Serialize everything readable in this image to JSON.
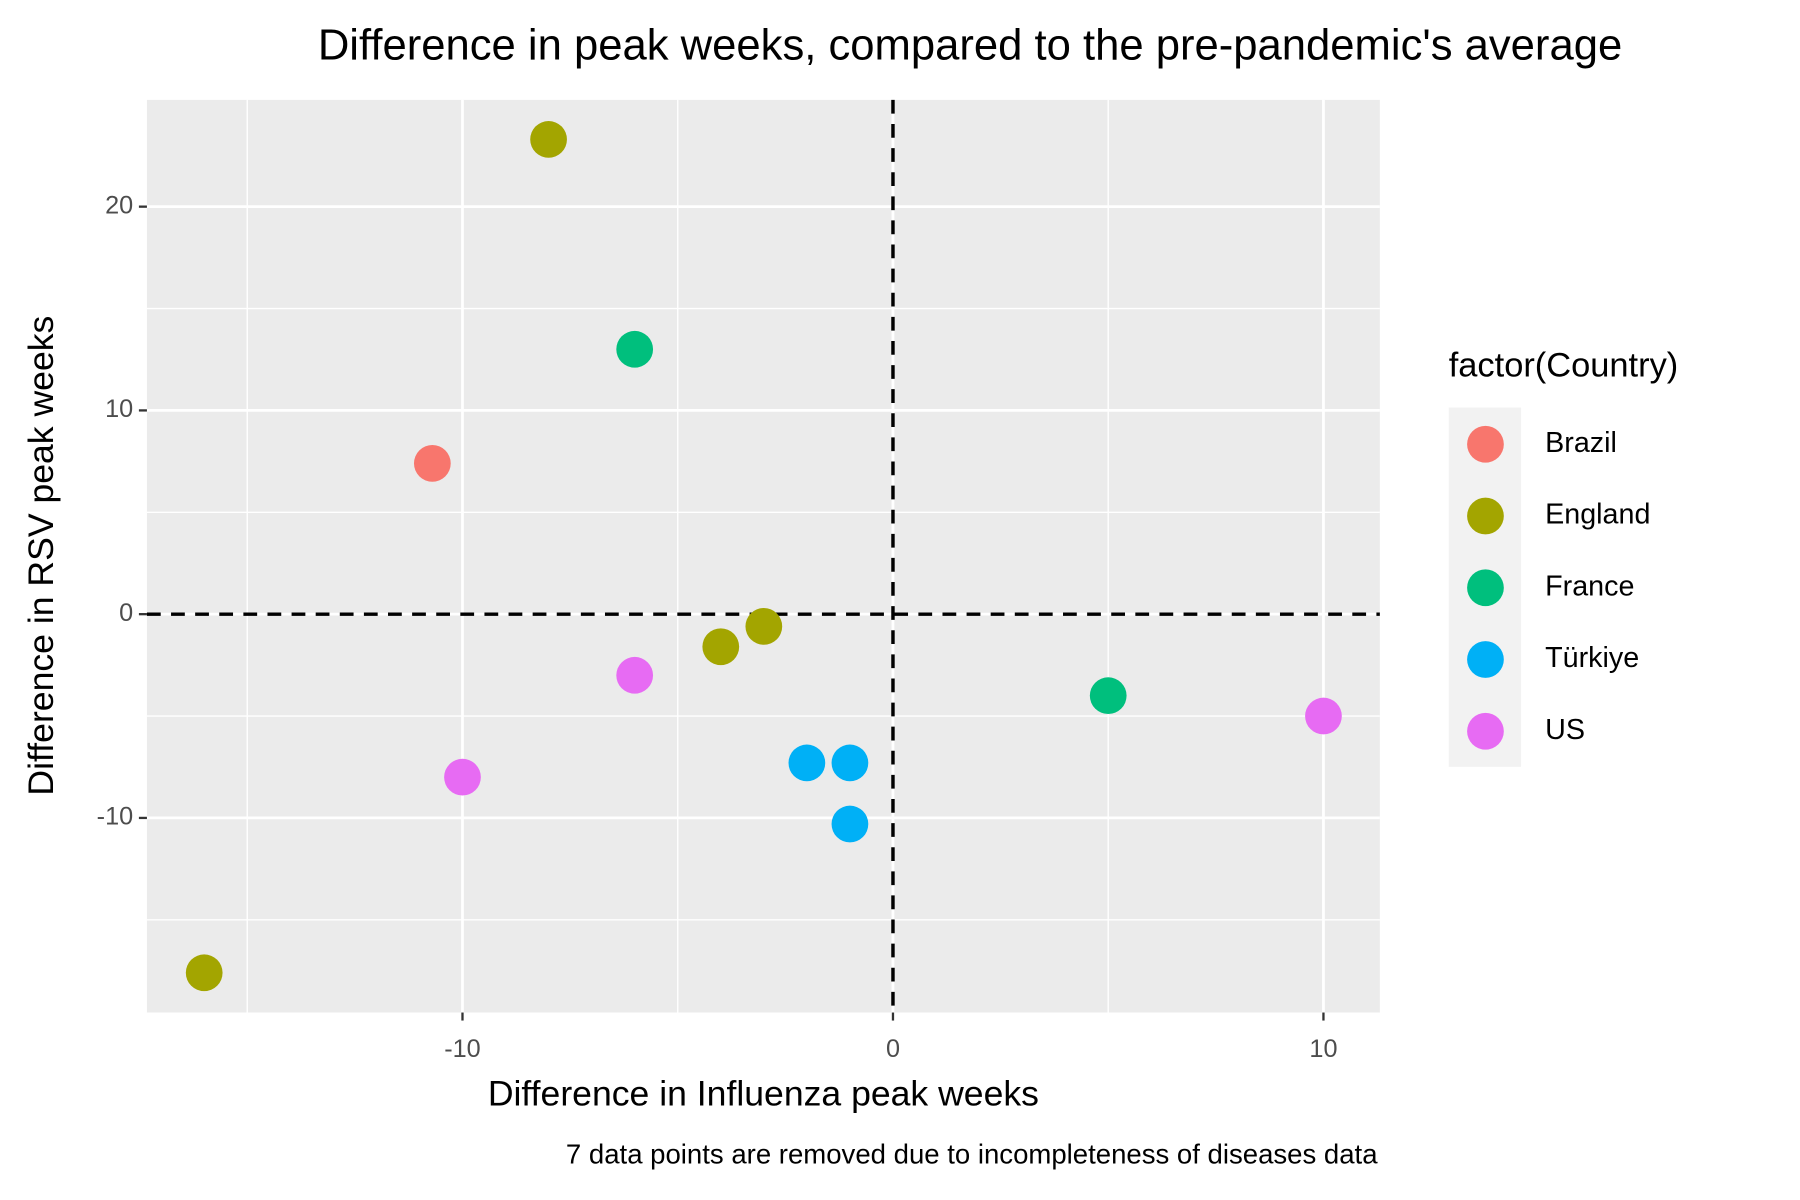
{
  "chart_data": {
    "type": "scatter",
    "title": "Difference in peak weeks, compared to the pre-pandemic's average",
    "x_label": "Difference in Influenza peak weeks",
    "y_label": "Difference in RSV peak weeks",
    "caption": "7 data points are removed due to incompleteness of diseases data",
    "legend_title": "factor(Country)",
    "legend_position": "right",
    "xlim": [
      -17.33,
      11.31
    ],
    "ylim": [
      -19.55,
      25.24
    ],
    "xticks": [
      -10,
      0,
      10
    ],
    "yticks": [
      -10,
      0,
      10,
      20
    ],
    "x_minor_ticks": [
      -15,
      -5,
      5
    ],
    "y_minor_ticks": [
      -15,
      -5,
      5,
      15
    ],
    "grid": true,
    "hlines": [
      0
    ],
    "vlines": [
      0
    ],
    "series": [
      {
        "name": "Brazil",
        "color": "#F8766D",
        "x": [
          -10.7
        ],
        "y": [
          7.4
        ]
      },
      {
        "name": "England",
        "color": "#A3A500",
        "x": [
          -8,
          -4,
          -3,
          -16
        ],
        "y": [
          23.3,
          -1.6,
          -0.6,
          -17.6
        ]
      },
      {
        "name": "France",
        "color": "#00BF7D",
        "x": [
          -6,
          5
        ],
        "y": [
          13,
          -4
        ]
      },
      {
        "name": "Türkiye",
        "color": "#00B0F6",
        "x": [
          -2,
          -1,
          -1
        ],
        "y": [
          -7.3,
          -7.3,
          -10.3
        ]
      },
      {
        "name": "US",
        "color": "#E76BF3",
        "x": [
          -6,
          -10,
          10
        ],
        "y": [
          -3,
          -8,
          -5
        ]
      }
    ]
  }
}
